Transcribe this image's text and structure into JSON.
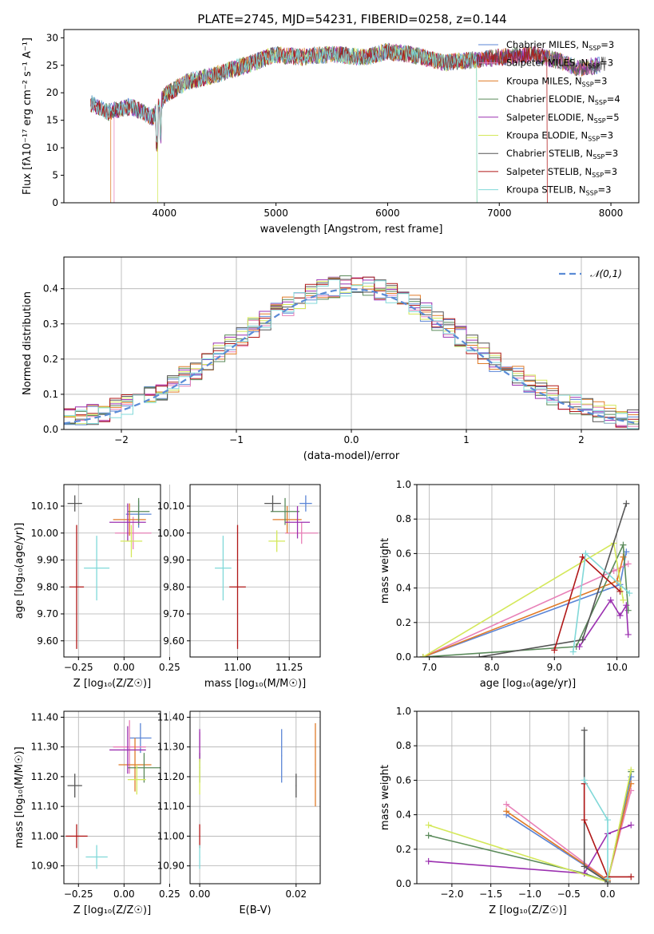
{
  "title": "PLATE=2745, MJD=54231, FIBERID=0258, z=0.144",
  "colors": {
    "chabrier_miles": "#5b85d6",
    "salpeter_miles": "#e880b8",
    "kroupa_miles": "#e07b28",
    "chabrier_elodie": "#5a8a5a",
    "salpeter_elodie": "#9b30b0",
    "kroupa_elodie": "#d4e85a",
    "chabrier_stelib": "#555555",
    "salpeter_stelib": "#b01818",
    "kroupa_stelib": "#80d8d8",
    "normal": "#5b8bd6"
  },
  "legend": [
    {
      "label": "Chabrier MILES, N",
      "sub": "SSP",
      "suffix": "=3",
      "color": "#5b85d6"
    },
    {
      "label": "Salpeter MILES, N",
      "sub": "SSP",
      "suffix": "=3",
      "color": "#e880b8"
    },
    {
      "label": "Kroupa MILES, N",
      "sub": "SSP",
      "suffix": "=3",
      "color": "#e07b28"
    },
    {
      "label": "Chabrier ELODIE, N",
      "sub": "SSP",
      "suffix": "=4",
      "color": "#5a8a5a"
    },
    {
      "label": "Salpeter ELODIE, N",
      "sub": "SSP",
      "suffix": "=5",
      "color": "#9b30b0"
    },
    {
      "label": "Kroupa ELODIE, N",
      "sub": "SSP",
      "suffix": "=3",
      "color": "#d4e85a"
    },
    {
      "label": "Chabrier STELIB, N",
      "sub": "SSP",
      "suffix": "=3",
      "color": "#555555"
    },
    {
      "label": "Salpeter STELIB, N",
      "sub": "SSP",
      "suffix": "=3",
      "color": "#b01818"
    },
    {
      "label": "Kroupa STELIB, N",
      "sub": "SSP",
      "suffix": "=3",
      "color": "#80d8d8"
    }
  ],
  "chart_data": [
    {
      "id": "spectrum",
      "type": "line",
      "xlabel": "wavelength [Angstrom, rest frame]",
      "ylabel": "Flux [fλ10⁻¹⁷ erg cm⁻² s⁻¹ A⁻¹]",
      "xlim": [
        3100,
        8250
      ],
      "ylim": [
        0,
        31.5
      ],
      "xticks": [
        4000,
        5000,
        6000,
        7000,
        8000
      ],
      "yticks": [
        0,
        5,
        10,
        15,
        20,
        25,
        30
      ],
      "envelope_x": [
        3350,
        3500,
        3700,
        3900,
        4000,
        4200,
        4500,
        4800,
        5000,
        5200,
        5500,
        5800,
        6000,
        6200,
        6500,
        6800,
        7000,
        7300,
        7500,
        7700,
        7900
      ],
      "envelope_y": [
        18,
        16.5,
        17.5,
        15.5,
        19.5,
        22,
        23.5,
        25.5,
        27,
        26.5,
        27,
        26.5,
        27.5,
        27,
        25.5,
        26,
        26.5,
        27,
        26,
        24.5,
        25
      ],
      "model_ranges": [
        [
          3340,
          7900
        ],
        [
          3550,
          7880
        ],
        [
          3520,
          7860
        ],
        [
          3340,
          7900
        ],
        [
          3340,
          7900
        ],
        [
          3940,
          6800
        ],
        [
          3340,
          7950
        ],
        [
          3340,
          7430
        ],
        [
          3340,
          6800
        ]
      ]
    },
    {
      "id": "residuals",
      "type": "line",
      "xlabel": "(data-model)/error",
      "ylabel": "Normed distribution",
      "xlim": [
        -2.5,
        2.5
      ],
      "ylim": [
        0,
        0.49
      ],
      "xticks": [
        -2,
        -1,
        0,
        1,
        2
      ],
      "yticks": [
        0.0,
        0.1,
        0.2,
        0.3,
        0.4
      ],
      "legend_label": "𝒩(0,1)",
      "bin_width": 0.1
    },
    {
      "id": "age_vs_Z",
      "type": "scatter",
      "xlabel": "Z [log₁₀(Z/Z☉)]",
      "ylabel": "age  [log₁₀(age/yr)]",
      "xlim": [
        -0.33,
        0.2
      ],
      "ylim": [
        9.54,
        10.18
      ],
      "xticks": [
        -0.25,
        0.0,
        0.25
      ],
      "yticks": [
        9.6,
        9.7,
        9.8,
        9.9,
        10.0,
        10.1
      ],
      "points": [
        {
          "x": 0.08,
          "y": 10.07,
          "xerr": 0.07,
          "yerr": 0.05
        },
        {
          "x": 0.05,
          "y": 10.0,
          "xerr": 0.1,
          "yerr": 0.06
        },
        {
          "x": 0.03,
          "y": 10.05,
          "xerr": 0.09,
          "yerr": 0.06
        },
        {
          "x": 0.08,
          "y": 10.08,
          "xerr": 0.06,
          "yerr": 0.05
        },
        {
          "x": 0.02,
          "y": 10.04,
          "xerr": 0.1,
          "yerr": 0.07
        },
        {
          "x": 0.04,
          "y": 9.97,
          "xerr": 0.06,
          "yerr": 0.06
        },
        {
          "x": -0.27,
          "y": 10.11,
          "xerr": 0.04,
          "yerr": 0.03
        },
        {
          "x": -0.26,
          "y": 9.8,
          "xerr": 0.04,
          "yerr": 0.23
        },
        {
          "x": -0.15,
          "y": 9.87,
          "xerr": 0.07,
          "yerr": 0.12
        }
      ]
    },
    {
      "id": "age_vs_mass",
      "type": "scatter",
      "xlabel": "mass [log₁₀(M/M☉)]",
      "ylabel": "",
      "xlim": [
        10.77,
        11.4
      ],
      "ylim": [
        9.54,
        10.18
      ],
      "xticks": [
        11.0,
        11.25
      ],
      "yticks": [
        9.6,
        9.7,
        9.8,
        9.9,
        10.0,
        10.1
      ],
      "points": [
        {
          "x": 11.33,
          "y": 10.11,
          "xerr": 0.03,
          "yerr": 0.03
        },
        {
          "x": 11.31,
          "y": 10.0,
          "xerr": 0.08,
          "yerr": 0.04
        },
        {
          "x": 11.24,
          "y": 10.05,
          "xerr": 0.07,
          "yerr": 0.05
        },
        {
          "x": 11.23,
          "y": 10.08,
          "xerr": 0.07,
          "yerr": 0.05
        },
        {
          "x": 11.29,
          "y": 10.04,
          "xerr": 0.06,
          "yerr": 0.06
        },
        {
          "x": 11.19,
          "y": 9.97,
          "xerr": 0.04,
          "yerr": 0.04
        },
        {
          "x": 11.17,
          "y": 10.11,
          "xerr": 0.04,
          "yerr": 0.03
        },
        {
          "x": 11.0,
          "y": 9.8,
          "xerr": 0.04,
          "yerr": 0.23
        },
        {
          "x": 10.93,
          "y": 9.87,
          "xerr": 0.04,
          "yerr": 0.12
        }
      ]
    },
    {
      "id": "massweight_vs_age",
      "type": "line",
      "xlabel": "age  [log₁₀(age/yr)]",
      "ylabel": "mass weight",
      "xlim": [
        6.8,
        10.35
      ],
      "ylim": [
        0,
        1.0
      ],
      "xticks": [
        7,
        8,
        9,
        10
      ],
      "yticks": [
        0.0,
        0.2,
        0.4,
        0.6,
        0.8,
        1.0
      ],
      "series": [
        {
          "x": [
            6.9,
            10.05,
            10.15
          ],
          "y": [
            0.0,
            0.42,
            0.61
          ]
        },
        {
          "x": [
            6.9,
            9.95,
            10.18
          ],
          "y": [
            0.0,
            0.5,
            0.54
          ]
        },
        {
          "x": [
            6.9,
            10.0,
            10.1
          ],
          "y": [
            0.0,
            0.44,
            0.58
          ]
        },
        {
          "x": [
            6.9,
            9.35,
            10.1,
            10.18
          ],
          "y": [
            0.0,
            0.06,
            0.65,
            0.27
          ]
        },
        {
          "x": [
            9.4,
            9.9,
            10.05,
            10.15,
            10.18
          ],
          "y": [
            0.06,
            0.33,
            0.24,
            0.3,
            0.13
          ]
        },
        {
          "x": [
            6.9,
            9.95,
            10.1
          ],
          "y": [
            0.0,
            0.66,
            0.33
          ]
        },
        {
          "x": [
            7.8,
            9.45,
            10.15
          ],
          "y": [
            0.0,
            0.1,
            0.89
          ]
        },
        {
          "x": [
            9.0,
            9.45,
            10.05
          ],
          "y": [
            0.04,
            0.58,
            0.38
          ]
        },
        {
          "x": [
            9.3,
            9.5,
            10.2
          ],
          "y": [
            0.03,
            0.6,
            0.37
          ]
        }
      ]
    },
    {
      "id": "mass_vs_Z",
      "type": "scatter",
      "xlabel": "Z [log₁₀(Z/Z☉)]",
      "ylabel": "mass [log₁₀(M/M☉)]",
      "xlim": [
        -0.33,
        0.2
      ],
      "ylim": [
        10.84,
        11.42
      ],
      "xticks": [
        -0.25,
        0.0,
        0.25
      ],
      "yticks": [
        10.9,
        11.0,
        11.1,
        11.2,
        11.3,
        11.4
      ],
      "points": [
        {
          "x": 0.09,
          "y": 11.33,
          "xerr": 0.06,
          "yerr": 0.05
        },
        {
          "x": 0.03,
          "y": 11.3,
          "xerr": 0.09,
          "yerr": 0.09
        },
        {
          "x": 0.06,
          "y": 11.24,
          "xerr": 0.09,
          "yerr": 0.09
        },
        {
          "x": 0.11,
          "y": 11.23,
          "xerr": 0.09,
          "yerr": 0.05
        },
        {
          "x": 0.02,
          "y": 11.29,
          "xerr": 0.1,
          "yerr": 0.08
        },
        {
          "x": 0.07,
          "y": 11.19,
          "xerr": 0.05,
          "yerr": 0.05
        },
        {
          "x": -0.27,
          "y": 11.17,
          "xerr": 0.04,
          "yerr": 0.04
        },
        {
          "x": -0.26,
          "y": 11.0,
          "xerr": 0.06,
          "yerr": 0.04
        },
        {
          "x": -0.15,
          "y": 10.93,
          "xerr": 0.06,
          "yerr": 0.04
        }
      ]
    },
    {
      "id": "mass_vs_EBV",
      "type": "scatter",
      "xlabel": "E(B-V)",
      "ylabel": "",
      "xlim": [
        -0.002,
        0.025
      ],
      "ylim": [
        10.84,
        11.42
      ],
      "xticks": [
        0.0,
        0.02
      ],
      "yticks": [
        10.9,
        11.0,
        11.1,
        11.2,
        11.3,
        11.4
      ],
      "points": [
        {
          "x": 0.017,
          "y": 11.27,
          "yerr": 0.09
        },
        {
          "x": 0.0,
          "y": 11.3,
          "yerr": 0.05
        },
        {
          "x": 0.024,
          "y": 11.24,
          "yerr": 0.14
        },
        {
          "x": 0.0,
          "y": 11.23,
          "yerr": 0.05
        },
        {
          "x": 0.0,
          "y": 11.31,
          "yerr": 0.05
        },
        {
          "x": 0.0,
          "y": 11.2,
          "yerr": 0.06
        },
        {
          "x": 0.02,
          "y": 11.17,
          "yerr": 0.04
        },
        {
          "x": 0.0,
          "y": 11.0,
          "yerr": 0.04
        },
        {
          "x": 0.0,
          "y": 10.93,
          "yerr": 0.04
        }
      ]
    },
    {
      "id": "massweight_vs_Z",
      "type": "line",
      "xlabel": "Z [log₁₀(Z/Z☉)]",
      "ylabel": "mass weight",
      "xlim": [
        -2.45,
        0.4
      ],
      "ylim": [
        0,
        1.0
      ],
      "xticks": [
        -2.0,
        -1.5,
        -1.0,
        -0.5,
        0.0
      ],
      "yticks": [
        0.0,
        0.2,
        0.4,
        0.6,
        0.8,
        1.0
      ],
      "series": [
        {
          "x": [
            -1.3,
            0.0,
            0.3
          ],
          "y": [
            0.4,
            0.02,
            0.62
          ]
        },
        {
          "x": [
            -1.3,
            0.0,
            0.3
          ],
          "y": [
            0.46,
            0.02,
            0.54
          ]
        },
        {
          "x": [
            -1.3,
            0.0,
            0.3
          ],
          "y": [
            0.42,
            0.02,
            0.58
          ]
        },
        {
          "x": [
            -2.3,
            -0.3,
            0.0,
            0.3
          ],
          "y": [
            0.28,
            0.06,
            0.01,
            0.65
          ]
        },
        {
          "x": [
            -2.3,
            -0.3,
            0.0,
            0.3
          ],
          "y": [
            0.13,
            0.06,
            0.29,
            0.34
          ]
        },
        {
          "x": [
            -2.3,
            0.0,
            0.3
          ],
          "y": [
            0.34,
            0.01,
            0.66
          ]
        },
        {
          "x": [
            -0.3,
            -0.3,
            0.0
          ],
          "y": [
            0.89,
            0.1,
            0.01
          ]
        },
        {
          "x": [
            -0.3,
            -0.3,
            0.0,
            0.3
          ],
          "y": [
            0.58,
            0.37,
            0.04,
            0.04
          ]
        },
        {
          "x": [
            -0.3,
            0.0,
            0.0
          ],
          "y": [
            0.6,
            0.37,
            0.03
          ]
        }
      ]
    }
  ]
}
